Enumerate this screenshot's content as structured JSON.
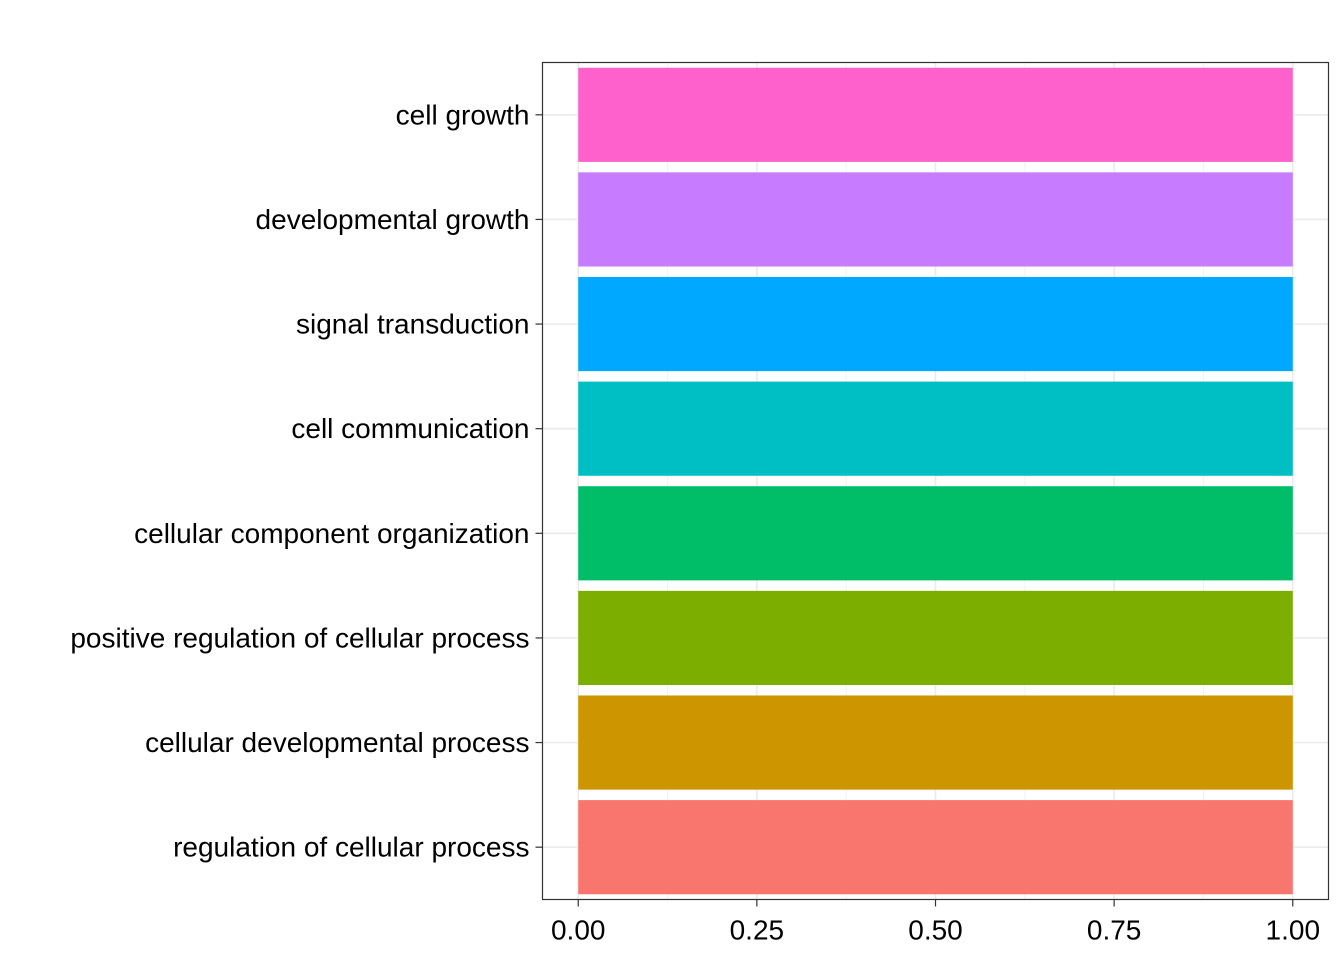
{
  "chart_data": {
    "type": "bar",
    "orientation": "horizontal",
    "categories": [
      "regulation of cellular process",
      "cellular developmental process",
      "positive regulation of cellular process",
      "cellular component organization",
      "cell communication",
      "signal transduction",
      "developmental growth",
      "cell growth"
    ],
    "values": [
      1,
      1,
      1,
      1,
      1,
      1,
      1,
      1
    ],
    "colors": [
      "#F8766D",
      "#CD9600",
      "#7CAE00",
      "#00BE67",
      "#00BFC4",
      "#00A9FF",
      "#C77CFF",
      "#FF61CC"
    ],
    "title": "",
    "xlabel": "",
    "ylabel": "",
    "xlim": [
      -0.05,
      1.05
    ],
    "xticks": [
      0,
      0.25,
      0.5,
      0.75,
      1
    ],
    "xtick_labels": [
      "0.00",
      "0.25",
      "0.50",
      "0.75",
      "1.00"
    ],
    "grid": true,
    "legend": "none"
  }
}
